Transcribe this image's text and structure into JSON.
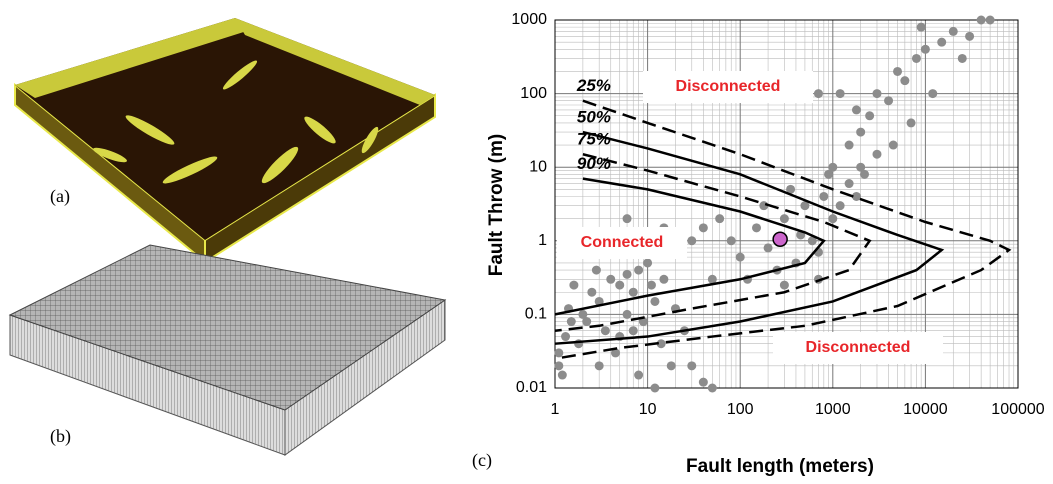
{
  "panel_labels": [
    "(a)",
    "(b)",
    "(c)"
  ],
  "chart_data": {
    "type": "scatter",
    "xlabel": "Fault length (meters)",
    "ylabel": "Fault Throw (m)",
    "xlim": [
      1,
      100000
    ],
    "ylim": [
      0.01,
      1000
    ],
    "log_x": true,
    "log_y": true,
    "xticks": [
      1,
      10,
      100,
      1000,
      10000,
      100000
    ],
    "yticks": [
      0.01,
      0.1,
      1,
      10,
      100,
      1000
    ],
    "grid": true,
    "minor_grid": true,
    "points": {
      "color": "#8c8c8c",
      "x": [
        1.1,
        1.3,
        1.5,
        1.2,
        2,
        2.5,
        3,
        1.8,
        4,
        5,
        6,
        7,
        8,
        10,
        12,
        15,
        3.5,
        2.2,
        1.4,
        6,
        9,
        5,
        4.5,
        7,
        11,
        14,
        18,
        25,
        2.8,
        1.6,
        8,
        12,
        20,
        30,
        40,
        50,
        3,
        6,
        15,
        1.1,
        100,
        150,
        200,
        300,
        400,
        500,
        600,
        800,
        1000,
        250,
        350,
        700,
        900,
        1200,
        1500,
        120,
        80,
        60,
        180,
        450,
        2000,
        1800,
        50,
        40,
        30,
        700,
        300,
        1000,
        1500,
        2000,
        2500,
        3000,
        4000,
        5000,
        6000,
        8000,
        10000,
        15000,
        20000,
        30000,
        40000,
        50000,
        3000,
        7000,
        12000,
        2200,
        1800,
        25000,
        9000,
        4500,
        1200,
        700
      ],
      "y": [
        0.03,
        0.05,
        0.08,
        0.015,
        0.1,
        0.2,
        0.15,
        0.04,
        0.3,
        0.25,
        0.35,
        0.2,
        0.4,
        0.5,
        0.15,
        0.3,
        0.06,
        0.08,
        0.12,
        0.1,
        0.08,
        0.05,
        0.03,
        0.06,
        0.25,
        0.04,
        0.02,
        0.06,
        0.4,
        0.25,
        0.015,
        0.01,
        0.12,
        0.02,
        0.012,
        0.01,
        0.02,
        2,
        1.5,
        0.02,
        0.6,
        1.5,
        0.8,
        2,
        0.5,
        3,
        1,
        4,
        2,
        0.4,
        5,
        0.7,
        8,
        3,
        6,
        0.3,
        1,
        2,
        3,
        1.2,
        10,
        4,
        0.3,
        1.5,
        1,
        0.3,
        0.25,
        10,
        20,
        30,
        50,
        100,
        80,
        200,
        150,
        300,
        400,
        500,
        700,
        600,
        1000,
        1000,
        15,
        40,
        100,
        8,
        60,
        300,
        800,
        20,
        100,
        100
      ]
    },
    "highlight": {
      "color": "#cc66cc",
      "x": [
        270
      ],
      "y": [
        1.05
      ]
    },
    "curves": [
      {
        "name": "25%",
        "dash": true,
        "x": [
          2,
          10,
          100,
          1000,
          10000,
          50000,
          80000,
          40000,
          5000,
          500,
          50,
          5,
          1
        ],
        "y": [
          80,
          40,
          15,
          5,
          1.8,
          1,
          0.75,
          0.4,
          0.13,
          0.07,
          0.05,
          0.035,
          0.025
        ]
      },
      {
        "name": "50%",
        "dash": false,
        "x": [
          2,
          10,
          100,
          1000,
          5000,
          15000,
          8000,
          1000,
          100,
          10,
          1
        ],
        "y": [
          30,
          18,
          8,
          2.5,
          1.2,
          0.75,
          0.4,
          0.15,
          0.08,
          0.05,
          0.04
        ]
      },
      {
        "name": "75%",
        "dash": true,
        "x": [
          2,
          10,
          100,
          800,
          2500,
          1500,
          300,
          30,
          3,
          1
        ],
        "y": [
          15,
          9,
          4,
          1.8,
          1,
          0.4,
          0.2,
          0.12,
          0.07,
          0.06
        ]
      },
      {
        "name": "90%",
        "dash": false,
        "x": [
          2,
          10,
          100,
          500,
          800,
          500,
          100,
          10,
          1
        ],
        "y": [
          7,
          5,
          2.5,
          1.3,
          1,
          0.5,
          0.3,
          0.18,
          0.1
        ]
      }
    ],
    "annotations": [
      "Disconnected",
      "Connected",
      "Disconnected"
    ]
  }
}
